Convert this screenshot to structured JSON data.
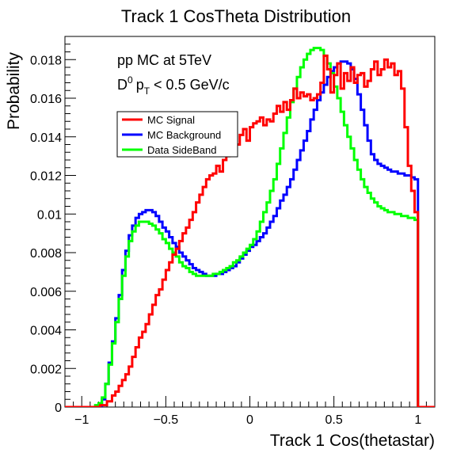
{
  "chart_data": {
    "type": "line",
    "title": "Track 1 CosTheta Distribution",
    "xlabel": "Track 1 Cos(thetastar)",
    "ylabel": "Probability",
    "xlim": [
      -1.1,
      1.1
    ],
    "ylim": [
      0,
      0.0192
    ],
    "grid": false,
    "legend_position": "upper-left",
    "annotations": [
      "pp MC at 5TeV",
      "D0 pT < 0.5 GeV/c"
    ],
    "x_ticks": [
      -1,
      -0.5,
      0,
      0.5,
      1
    ],
    "x_tick_labels": [
      "−1",
      "−0.5",
      "0",
      "0.5",
      "1"
    ],
    "y_ticks": [
      0,
      0.002,
      0.004,
      0.006,
      0.008,
      0.01,
      0.012,
      0.014,
      0.016,
      0.018
    ],
    "y_tick_labels": [
      "0",
      "0.002",
      "0.004",
      "0.006",
      "0.008",
      "0.01",
      "0.012",
      "0.014",
      "0.016",
      "0.018"
    ],
    "series": [
      {
        "name": "MC Signal",
        "color": "#ff0000",
        "points": [
          [
            -1.1,
            0
          ],
          [
            -0.94,
            0
          ],
          [
            -0.89,
            0.0001
          ],
          [
            -0.85,
            0.0003
          ],
          [
            -0.82,
            0.0006
          ],
          [
            -0.8,
            0.0008
          ],
          [
            -0.78,
            0.0011
          ],
          [
            -0.76,
            0.0014
          ],
          [
            -0.74,
            0.0017
          ],
          [
            -0.72,
            0.0021
          ],
          [
            -0.7,
            0.0026
          ],
          [
            -0.68,
            0.0031
          ],
          [
            -0.66,
            0.0036
          ],
          [
            -0.64,
            0.0039
          ],
          [
            -0.62,
            0.0043
          ],
          [
            -0.6,
            0.0048
          ],
          [
            -0.58,
            0.0053
          ],
          [
            -0.56,
            0.0058
          ],
          [
            -0.54,
            0.0061
          ],
          [
            -0.52,
            0.0066
          ],
          [
            -0.5,
            0.0071
          ],
          [
            -0.48,
            0.0075
          ],
          [
            -0.46,
            0.0079
          ],
          [
            -0.44,
            0.0082
          ],
          [
            -0.42,
            0.0086
          ],
          [
            -0.4,
            0.009
          ],
          [
            -0.38,
            0.0093
          ],
          [
            -0.36,
            0.0097
          ],
          [
            -0.34,
            0.0101
          ],
          [
            -0.32,
            0.0106
          ],
          [
            -0.3,
            0.011
          ],
          [
            -0.28,
            0.0114
          ],
          [
            -0.26,
            0.0118
          ],
          [
            -0.24,
            0.012
          ],
          [
            -0.22,
            0.0121
          ],
          [
            -0.2,
            0.0125
          ],
          [
            -0.18,
            0.0122
          ],
          [
            -0.16,
            0.0128
          ],
          [
            -0.14,
            0.013
          ],
          [
            -0.12,
            0.0132
          ],
          [
            -0.1,
            0.0134
          ],
          [
            -0.08,
            0.0136
          ],
          [
            -0.06,
            0.0141
          ],
          [
            -0.04,
            0.0144
          ],
          [
            -0.02,
            0.0138
          ],
          [
            0,
            0.0145
          ],
          [
            0.02,
            0.0147
          ],
          [
            0.04,
            0.0148
          ],
          [
            0.06,
            0.015
          ],
          [
            0.08,
            0.0146
          ],
          [
            0.1,
            0.0149
          ],
          [
            0.12,
            0.0148
          ],
          [
            0.14,
            0.0152
          ],
          [
            0.16,
            0.0156
          ],
          [
            0.18,
            0.0153
          ],
          [
            0.2,
            0.0158
          ],
          [
            0.22,
            0.0154
          ],
          [
            0.24,
            0.0159
          ],
          [
            0.26,
            0.0165
          ],
          [
            0.28,
            0.016
          ],
          [
            0.3,
            0.0163
          ],
          [
            0.32,
            0.0161
          ],
          [
            0.34,
            0.0162
          ],
          [
            0.36,
            0.0159
          ],
          [
            0.38,
            0.016
          ],
          [
            0.4,
            0.0162
          ],
          [
            0.42,
            0.0168
          ],
          [
            0.44,
            0.0182
          ],
          [
            0.46,
            0.0175
          ],
          [
            0.48,
            0.0163
          ],
          [
            0.5,
            0.0172
          ],
          [
            0.52,
            0.0178
          ],
          [
            0.54,
            0.0165
          ],
          [
            0.56,
            0.0173
          ],
          [
            0.58,
            0.0169
          ],
          [
            0.6,
            0.0176
          ],
          [
            0.62,
            0.0168
          ],
          [
            0.64,
            0.0172
          ],
          [
            0.66,
            0.0173
          ],
          [
            0.68,
            0.0166
          ],
          [
            0.7,
            0.0169
          ],
          [
            0.72,
            0.0175
          ],
          [
            0.74,
            0.0179
          ],
          [
            0.76,
            0.0172
          ],
          [
            0.78,
            0.0175
          ],
          [
            0.8,
            0.018
          ],
          [
            0.82,
            0.0176
          ],
          [
            0.84,
            0.0178
          ],
          [
            0.86,
            0.0172
          ],
          [
            0.88,
            0.0174
          ],
          [
            0.9,
            0.0165
          ],
          [
            0.92,
            0.0145
          ],
          [
            0.94,
            0.0125
          ],
          [
            0.96,
            0.0112
          ],
          [
            0.98,
            0.0101
          ],
          [
            1.0,
            0
          ]
        ],
        "x_end": 1.1
      },
      {
        "name": "MC Background",
        "color": "#0000ff",
        "points": [
          [
            -1.1,
            0
          ],
          [
            -0.9,
            0
          ],
          [
            -0.88,
            0.0004
          ],
          [
            -0.86,
            0.0012
          ],
          [
            -0.84,
            0.0023
          ],
          [
            -0.82,
            0.0034
          ],
          [
            -0.8,
            0.0046
          ],
          [
            -0.78,
            0.0058
          ],
          [
            -0.76,
            0.0071
          ],
          [
            -0.74,
            0.0081
          ],
          [
            -0.72,
            0.0089
          ],
          [
            -0.7,
            0.0094
          ],
          [
            -0.68,
            0.0098
          ],
          [
            -0.66,
            0.01
          ],
          [
            -0.64,
            0.0101
          ],
          [
            -0.62,
            0.0102
          ],
          [
            -0.6,
            0.0102
          ],
          [
            -0.58,
            0.0101
          ],
          [
            -0.56,
            0.0099
          ],
          [
            -0.54,
            0.0096
          ],
          [
            -0.52,
            0.0093
          ],
          [
            -0.5,
            0.0091
          ],
          [
            -0.48,
            0.0088
          ],
          [
            -0.46,
            0.0085
          ],
          [
            -0.44,
            0.0083
          ],
          [
            -0.42,
            0.008
          ],
          [
            -0.4,
            0.0078
          ],
          [
            -0.38,
            0.0076
          ],
          [
            -0.36,
            0.0074
          ],
          [
            -0.34,
            0.0072
          ],
          [
            -0.32,
            0.0071
          ],
          [
            -0.3,
            0.007
          ],
          [
            -0.28,
            0.0069
          ],
          [
            -0.26,
            0.0068
          ],
          [
            -0.24,
            0.0068
          ],
          [
            -0.22,
            0.0068
          ],
          [
            -0.2,
            0.0069
          ],
          [
            -0.18,
            0.0069
          ],
          [
            -0.16,
            0.007
          ],
          [
            -0.14,
            0.0071
          ],
          [
            -0.12,
            0.0072
          ],
          [
            -0.1,
            0.0073
          ],
          [
            -0.08,
            0.0075
          ],
          [
            -0.06,
            0.0077
          ],
          [
            -0.04,
            0.0079
          ],
          [
            -0.02,
            0.0081
          ],
          [
            0,
            0.0083
          ],
          [
            0.02,
            0.0084
          ],
          [
            0.04,
            0.0086
          ],
          [
            0.06,
            0.0088
          ],
          [
            0.08,
            0.009
          ],
          [
            0.1,
            0.0093
          ],
          [
            0.12,
            0.0096
          ],
          [
            0.14,
            0.0099
          ],
          [
            0.16,
            0.0103
          ],
          [
            0.18,
            0.0107
          ],
          [
            0.2,
            0.011
          ],
          [
            0.22,
            0.0114
          ],
          [
            0.24,
            0.0118
          ],
          [
            0.26,
            0.0123
          ],
          [
            0.28,
            0.0128
          ],
          [
            0.3,
            0.0133
          ],
          [
            0.32,
            0.0138
          ],
          [
            0.34,
            0.0143
          ],
          [
            0.36,
            0.0149
          ],
          [
            0.38,
            0.0154
          ],
          [
            0.4,
            0.0159
          ],
          [
            0.42,
            0.0163
          ],
          [
            0.44,
            0.0167
          ],
          [
            0.46,
            0.0171
          ],
          [
            0.48,
            0.0174
          ],
          [
            0.5,
            0.0176
          ],
          [
            0.52,
            0.0178
          ],
          [
            0.54,
            0.0179
          ],
          [
            0.56,
            0.0179
          ],
          [
            0.58,
            0.0178
          ],
          [
            0.6,
            0.0175
          ],
          [
            0.62,
            0.017
          ],
          [
            0.64,
            0.0162
          ],
          [
            0.66,
            0.0154
          ],
          [
            0.68,
            0.0146
          ],
          [
            0.7,
            0.0138
          ],
          [
            0.72,
            0.0131
          ],
          [
            0.74,
            0.0128
          ],
          [
            0.76,
            0.0126
          ],
          [
            0.78,
            0.0125
          ],
          [
            0.8,
            0.0124
          ],
          [
            0.82,
            0.0123
          ],
          [
            0.84,
            0.0122
          ],
          [
            0.86,
            0.0122
          ],
          [
            0.88,
            0.0121
          ],
          [
            0.9,
            0.0121
          ],
          [
            0.92,
            0.012
          ],
          [
            0.94,
            0.012
          ],
          [
            0.96,
            0.0119
          ],
          [
            0.98,
            0.0118
          ],
          [
            1.0,
            0
          ]
        ],
        "x_end": 1.1
      },
      {
        "name": "Data SideBand",
        "color": "#00ff00",
        "points": [
          [
            -1.1,
            0
          ],
          [
            -0.94,
            0
          ],
          [
            -0.92,
            0.0001
          ],
          [
            -0.9,
            0.0002
          ],
          [
            -0.88,
            0.0005
          ],
          [
            -0.86,
            0.0012
          ],
          [
            -0.84,
            0.0022
          ],
          [
            -0.82,
            0.0033
          ],
          [
            -0.8,
            0.0044
          ],
          [
            -0.78,
            0.0056
          ],
          [
            -0.76,
            0.0068
          ],
          [
            -0.74,
            0.0078
          ],
          [
            -0.72,
            0.0086
          ],
          [
            -0.7,
            0.0091
          ],
          [
            -0.68,
            0.0094
          ],
          [
            -0.66,
            0.0096
          ],
          [
            -0.64,
            0.0096
          ],
          [
            -0.62,
            0.0096
          ],
          [
            -0.6,
            0.0095
          ],
          [
            -0.58,
            0.0094
          ],
          [
            -0.56,
            0.0092
          ],
          [
            -0.54,
            0.009
          ],
          [
            -0.52,
            0.0087
          ],
          [
            -0.5,
            0.0085
          ],
          [
            -0.48,
            0.0082
          ],
          [
            -0.46,
            0.008
          ],
          [
            -0.44,
            0.0078
          ],
          [
            -0.42,
            0.0075
          ],
          [
            -0.4,
            0.0073
          ],
          [
            -0.38,
            0.0072
          ],
          [
            -0.36,
            0.007
          ],
          [
            -0.34,
            0.0069
          ],
          [
            -0.32,
            0.0068
          ],
          [
            -0.3,
            0.0068
          ],
          [
            -0.28,
            0.0068
          ],
          [
            -0.26,
            0.0068
          ],
          [
            -0.24,
            0.0068
          ],
          [
            -0.22,
            0.0069
          ],
          [
            -0.2,
            0.0069
          ],
          [
            -0.18,
            0.007
          ],
          [
            -0.16,
            0.0071
          ],
          [
            -0.14,
            0.0072
          ],
          [
            -0.12,
            0.0073
          ],
          [
            -0.1,
            0.0075
          ],
          [
            -0.08,
            0.0076
          ],
          [
            -0.06,
            0.0078
          ],
          [
            -0.04,
            0.008
          ],
          [
            -0.02,
            0.0082
          ],
          [
            0,
            0.0084
          ],
          [
            0.02,
            0.0087
          ],
          [
            0.04,
            0.0091
          ],
          [
            0.06,
            0.0096
          ],
          [
            0.08,
            0.0101
          ],
          [
            0.1,
            0.0106
          ],
          [
            0.12,
            0.0112
          ],
          [
            0.14,
            0.0118
          ],
          [
            0.16,
            0.0126
          ],
          [
            0.18,
            0.0134
          ],
          [
            0.2,
            0.0142
          ],
          [
            0.22,
            0.015
          ],
          [
            0.24,
            0.0158
          ],
          [
            0.26,
            0.0165
          ],
          [
            0.28,
            0.0171
          ],
          [
            0.3,
            0.0176
          ],
          [
            0.32,
            0.018
          ],
          [
            0.34,
            0.0183
          ],
          [
            0.36,
            0.0185
          ],
          [
            0.38,
            0.0186
          ],
          [
            0.4,
            0.0186
          ],
          [
            0.42,
            0.0185
          ],
          [
            0.44,
            0.0182
          ],
          [
            0.46,
            0.0178
          ],
          [
            0.48,
            0.0173
          ],
          [
            0.5,
            0.0166
          ],
          [
            0.52,
            0.016
          ],
          [
            0.54,
            0.0153
          ],
          [
            0.56,
            0.0146
          ],
          [
            0.58,
            0.014
          ],
          [
            0.6,
            0.0134
          ],
          [
            0.62,
            0.0128
          ],
          [
            0.64,
            0.0123
          ],
          [
            0.66,
            0.0118
          ],
          [
            0.68,
            0.0114
          ],
          [
            0.7,
            0.0111
          ],
          [
            0.72,
            0.0108
          ],
          [
            0.74,
            0.0106
          ],
          [
            0.76,
            0.0104
          ],
          [
            0.78,
            0.0103
          ],
          [
            0.8,
            0.0102
          ],
          [
            0.82,
            0.0101
          ],
          [
            0.84,
            0.0101
          ],
          [
            0.86,
            0.01
          ],
          [
            0.88,
            0.01
          ],
          [
            0.9,
            0.0099
          ],
          [
            0.92,
            0.0099
          ],
          [
            0.94,
            0.0098
          ],
          [
            0.96,
            0.0098
          ],
          [
            0.98,
            0.0097
          ],
          [
            1.0,
            0
          ]
        ],
        "x_end": 1.1
      }
    ]
  }
}
